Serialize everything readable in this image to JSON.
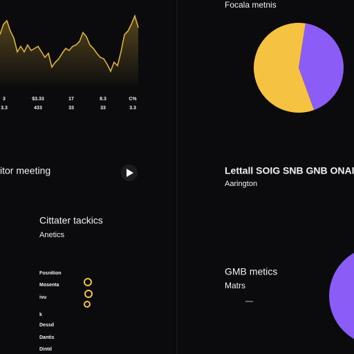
{
  "chart_data": [
    {
      "type": "line",
      "color": "#e0b43a",
      "ylim": [
        0,
        100
      ],
      "values": [
        60,
        75,
        80,
        65,
        55,
        35,
        43,
        35,
        45,
        37,
        40,
        43,
        35,
        27,
        33,
        13,
        20,
        25,
        33,
        40,
        37,
        43,
        45,
        50,
        63,
        57,
        45,
        40,
        33,
        27,
        25,
        17,
        7,
        20,
        15,
        35,
        60,
        65,
        75,
        87,
        70
      ],
      "tick_labels": [
        [
          "3",
          "3.3"
        ],
        [
          "$3.33",
          "433"
        ],
        [
          "17",
          "33"
        ],
        [
          "8.3",
          "33"
        ],
        [
          "C%",
          "3.3"
        ]
      ]
    },
    {
      "type": "pie",
      "title": "Focala metnis",
      "values": [
        58,
        42
      ],
      "colors": [
        "#f5c242",
        "#8b5cf6"
      ]
    }
  ],
  "player": {
    "title": "itor meeting"
  },
  "headline": {
    "title": "Lettall SOIG SNB GNB ONAI",
    "subtitle": "Aarington"
  },
  "tactics": {
    "title": "Cittater tackics",
    "subtitle": "Anetics",
    "items": [
      "Fosnition",
      "Mosenta",
      "ivu",
      "k",
      "Dessd",
      "Dantis",
      "Dintd"
    ]
  },
  "gmb": {
    "title": "GMB metics",
    "subtitle": "Matrs"
  }
}
